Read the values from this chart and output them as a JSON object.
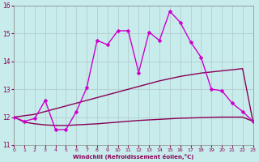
{
  "xlabel": "Windchill (Refroidissement éolien,°C)",
  "background_color": "#c8ecec",
  "grid_color": "#b0c8c8",
  "line_color_main": "#cc00cc",
  "line_color_dark": "#880055",
  "xlim": [
    0,
    23
  ],
  "ylim": [
    11,
    16
  ],
  "yticks": [
    11,
    12,
    13,
    14,
    15,
    16
  ],
  "xticks": [
    0,
    1,
    2,
    3,
    4,
    5,
    6,
    7,
    8,
    9,
    10,
    11,
    12,
    13,
    14,
    15,
    16,
    17,
    18,
    19,
    20,
    21,
    22,
    23
  ],
  "x": [
    0,
    1,
    2,
    3,
    4,
    5,
    6,
    7,
    8,
    9,
    10,
    11,
    12,
    13,
    14,
    15,
    16,
    17,
    18,
    19,
    20,
    21,
    22,
    23
  ],
  "y_main": [
    12.0,
    11.85,
    11.95,
    12.6,
    11.55,
    11.55,
    12.2,
    13.05,
    14.75,
    14.6,
    15.1,
    15.1,
    13.6,
    15.05,
    14.75,
    15.8,
    15.4,
    14.7,
    14.15,
    13.0,
    12.95,
    12.5,
    12.2,
    11.85
  ],
  "y_upper": [
    12.0,
    12.05,
    12.1,
    12.2,
    12.3,
    12.4,
    12.5,
    12.6,
    12.7,
    12.8,
    12.9,
    13.0,
    13.1,
    13.2,
    13.3,
    13.38,
    13.46,
    13.52,
    13.58,
    13.62,
    13.66,
    13.7,
    13.74,
    11.85
  ],
  "y_lower": [
    12.0,
    11.82,
    11.76,
    11.72,
    11.7,
    11.7,
    11.72,
    11.74,
    11.76,
    11.79,
    11.82,
    11.85,
    11.88,
    11.9,
    11.92,
    11.94,
    11.96,
    11.97,
    11.98,
    11.99,
    12.0,
    12.0,
    12.0,
    11.85
  ],
  "marker_size": 2.5,
  "linewidth": 1.0
}
